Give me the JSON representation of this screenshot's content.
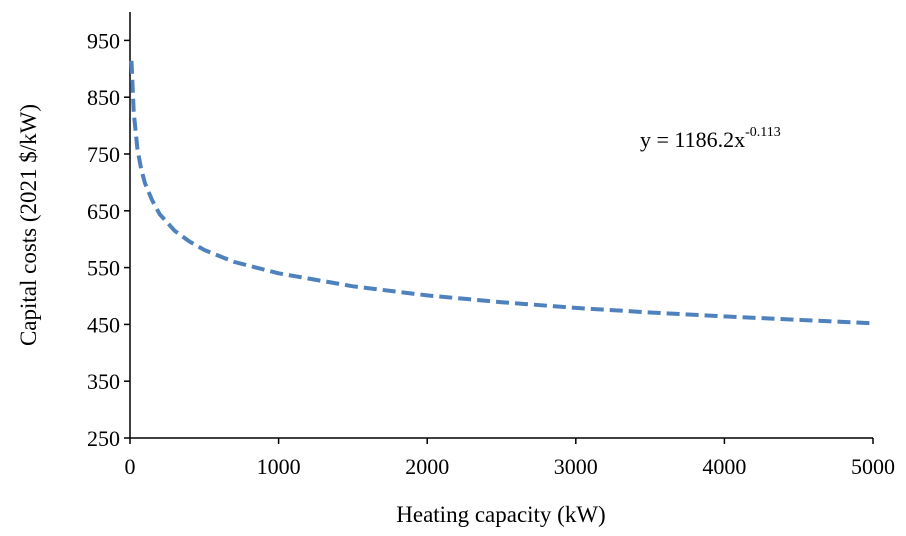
{
  "chart_data": {
    "type": "line",
    "title": "",
    "xlabel": "Heating capacity (kW)",
    "ylabel": "Capital costs (2021 $/kW)",
    "xlim": [
      0,
      5000
    ],
    "ylim": [
      250,
      1000
    ],
    "xticks": [
      "0",
      "1000",
      "2000",
      "3000",
      "4000",
      "5000"
    ],
    "yticks": [
      "250",
      "350",
      "450",
      "550",
      "650",
      "750",
      "850",
      "950"
    ],
    "grid": false,
    "legend": "none",
    "series": [
      {
        "line_style": "dashed",
        "color": "#4F81BD",
        "x": [
          10,
          25,
          50,
          75,
          100,
          150,
          200,
          300,
          400,
          500,
          700,
          1000,
          1500,
          2000,
          2500,
          3000,
          3500,
          4000,
          4500,
          5000
        ],
        "y": [
          914,
          824,
          759,
          724,
          699,
          668,
          644,
          615,
          596,
          581,
          560,
          540,
          517,
          501,
          489,
          479,
          471,
          464,
          458,
          452
        ]
      }
    ],
    "annotation": {
      "base": "y = 1186.2x",
      "exponent": "-0.113"
    }
  }
}
